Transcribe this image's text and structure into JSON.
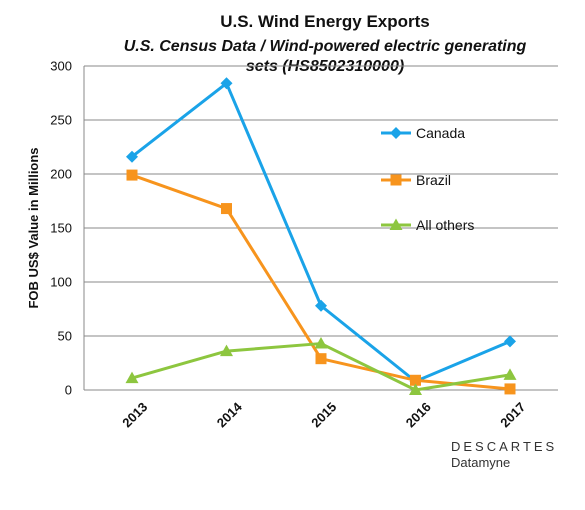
{
  "chart_data": {
    "type": "line",
    "title": "U.S. Wind Energy Exports",
    "subtitle_line1": "U.S. Census Data / Wind-powered electric generating",
    "subtitle_line2": "sets (HS8502310000)",
    "xlabel": "",
    "ylabel": "FOB US$ Value in Millions",
    "categories": [
      "2013",
      "2014",
      "2015",
      "2016",
      "2017"
    ],
    "ylim": [
      0,
      300
    ],
    "yticks": [
      "0",
      "50",
      "100",
      "150",
      "200",
      "250",
      "300"
    ],
    "grid": true,
    "legend_position": "right",
    "series": [
      {
        "name": "Canada",
        "values": [
          216,
          284,
          78,
          8,
          45
        ],
        "color": "#1aa3e8",
        "marker": "diamond"
      },
      {
        "name": "Brazil",
        "values": [
          199,
          168,
          29,
          9,
          1
        ],
        "color": "#f7941d",
        "marker": "square"
      },
      {
        "name": "All others",
        "values": [
          11,
          36,
          43,
          0,
          14
        ],
        "color": "#8dc63f",
        "marker": "triangle"
      }
    ]
  },
  "branding": {
    "logo_line1": "DESCARTES",
    "logo_line2": "Datamyne"
  }
}
